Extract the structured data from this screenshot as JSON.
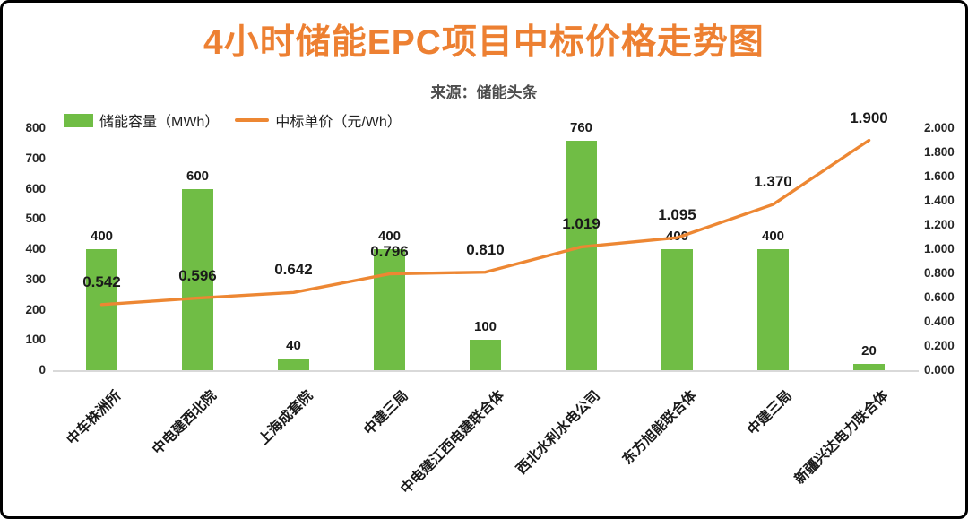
{
  "title": "4小时储能EPC项目中标价格走势图",
  "subtitle": "来源：储能头条",
  "legend": {
    "bar_label": "储能容量（MWh）",
    "line_label": "中标单价（元/Wh）"
  },
  "colors": {
    "title": "#ED8032",
    "subtitle": "#4D4D4D",
    "bar": "#70BD45",
    "line": "#ED8733",
    "label_text": "#1A1A1A",
    "axis_text": "#262626",
    "baseline": "#D9D9D9"
  },
  "chart_data": {
    "type": "bar",
    "combo": "bar+line",
    "title": "4小时储能EPC项目中标价格走势图",
    "subtitle": "来源：储能头条",
    "categories": [
      "中车株洲所",
      "中电建西北院",
      "上海成套院",
      "中建三局",
      "中电建江西电建联合体",
      "西北水利水电公司",
      "东方旭能联合体",
      "中建三局",
      "新疆兴达电力联合体"
    ],
    "series": [
      {
        "name": "储能容量（MWh）",
        "type": "bar",
        "axis": "left",
        "values": [
          400,
          600,
          40,
          400,
          100,
          760,
          400,
          400,
          20
        ],
        "labels": [
          "400",
          "600",
          "40",
          "400",
          "100",
          "760",
          "400",
          "400",
          "20"
        ]
      },
      {
        "name": "中标单价（元/Wh）",
        "type": "line",
        "axis": "right",
        "values": [
          0.542,
          0.596,
          0.642,
          0.796,
          0.81,
          1.019,
          1.095,
          1.37,
          1.9
        ],
        "labels": [
          "0.542",
          "0.596",
          "0.642",
          "0.796",
          "0.810",
          "1.019",
          "1.095",
          "1.370",
          "1.900"
        ]
      }
    ],
    "left_axis": {
      "min": 0,
      "max": 800,
      "ticks": [
        "0",
        "100",
        "200",
        "300",
        "400",
        "500",
        "600",
        "700",
        "800"
      ]
    },
    "right_axis": {
      "min": 0,
      "max": 2,
      "ticks": [
        "0.000",
        "0.200",
        "0.400",
        "0.600",
        "0.800",
        "1.000",
        "1.200",
        "1.400",
        "1.600",
        "1.800",
        "2.000"
      ]
    },
    "grid": false,
    "legend_position": "top-left",
    "x_label_rotation_deg": -45
  }
}
